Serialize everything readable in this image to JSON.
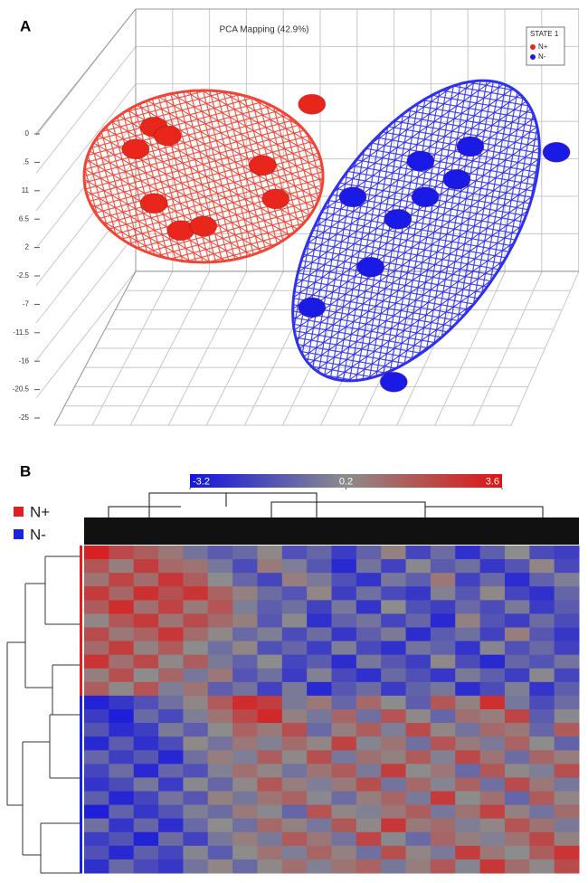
{
  "chart_data": [
    {
      "type": "scatter3d",
      "panel": "A",
      "title": "PCA Mapping (42.9%)",
      "legend_title": "STATE 1",
      "legend": "top-right",
      "ylim": [
        -25,
        20
      ],
      "yticks": [
        {
          "value": 20,
          "label": "0"
        },
        {
          "value": 15.5,
          "label": ".5"
        },
        11,
        6.5,
        2,
        -2.5,
        -7,
        -11.5,
        -16,
        -20.5,
        -25
      ],
      "xlim": [
        0,
        100
      ],
      "series": [
        {
          "name": "N+",
          "color": "#e8261c",
          "x": [
            49.1,
            19.0,
            21.6,
            15.5,
            39.7,
            42.2,
            19.0,
            24.1,
            28.4
          ],
          "y": [
            24.7,
            21.1,
            19.7,
            17.6,
            15.0,
            9.7,
            9.0,
            4.7,
            5.4
          ]
        },
        {
          "name": "N-",
          "color": "#1a1ae6",
          "x": [
            95.7,
            69.8,
            79.3,
            76.7,
            70.7,
            56.9,
            65.5,
            60.3,
            49.1,
            64.7
          ],
          "y": [
            17.1,
            15.7,
            18.0,
            12.8,
            10.0,
            10.0,
            6.5,
            -1.1,
            -7.5,
            -19.3
          ]
        }
      ]
    },
    {
      "type": "heatmap",
      "panel": "B",
      "colorscale": {
        "lim": [
          -3.2,
          3.6
        ],
        "ticks": [
          -3.2,
          0.2,
          3.6
        ],
        "colors": [
          "#1414e0",
          "#8c8c8c",
          "#e01414"
        ]
      },
      "groups": [
        {
          "name": "N+",
          "color": "#e02020"
        },
        {
          "name": "N-",
          "color": "#1a22e0"
        }
      ],
      "rows": [
        {
          "group": 0,
          "values": [
            3.2,
            2.1,
            1.5,
            0.8,
            -0.5,
            -1.2,
            -0.8,
            0.3,
            -1.5,
            -0.9,
            -2.1,
            -1.0,
            0.5,
            -1.8,
            -0.7,
            -2.4,
            -1.1,
            0.2,
            -1.6,
            -2.0
          ]
        },
        {
          "group": 0,
          "values": [
            1.8,
            0.6,
            2.4,
            1.2,
            0.9,
            -0.4,
            -1.6,
            0.7,
            -0.2,
            -1.3,
            -2.6,
            -0.5,
            -1.9,
            0.1,
            -1.2,
            -0.6,
            -2.2,
            -1.4,
            0.4,
            -1.7
          ]
        },
        {
          "group": 0,
          "values": [
            0.9,
            2.2,
            1.1,
            2.6,
            1.5,
            0.2,
            -0.9,
            -1.8,
            0.6,
            -0.3,
            -1.5,
            -2.3,
            -0.4,
            -1.1,
            0.8,
            -1.9,
            -0.8,
            -2.5,
            -1.0,
            -0.2
          ]
        },
        {
          "group": 0,
          "values": [
            2.5,
            1.3,
            2.8,
            1.9,
            2.7,
            1.4,
            0.5,
            -0.7,
            -1.4,
            0.4,
            -2.0,
            -0.6,
            -1.7,
            -2.2,
            -0.1,
            -1.3,
            0.3,
            -1.8,
            -2.4,
            -0.9
          ]
        },
        {
          "group": 0,
          "values": [
            1.6,
            2.9,
            1.0,
            2.3,
            0.7,
            1.8,
            -0.2,
            -1.1,
            -0.6,
            -1.9,
            -0.4,
            -2.3,
            0.2,
            -1.5,
            -2.0,
            -0.8,
            -1.6,
            -0.3,
            -2.1,
            -1.2
          ]
        },
        {
          "group": 0,
          "values": [
            0.4,
            1.7,
            2.5,
            0.9,
            2.0,
            1.2,
            0.6,
            -1.3,
            0.1,
            -2.4,
            -1.0,
            -0.5,
            -1.8,
            -0.9,
            -2.6,
            0.5,
            -1.4,
            -2.0,
            -0.7,
            -1.6
          ]
        },
        {
          "group": 0,
          "values": [
            2.0,
            0.8,
            1.4,
            2.6,
            1.1,
            0.3,
            -0.8,
            -0.2,
            -1.6,
            -0.7,
            -2.2,
            -1.1,
            -0.3,
            -2.5,
            -1.2,
            -0.6,
            -1.9,
            0.6,
            -1.3,
            -2.2
          ]
        },
        {
          "group": 0,
          "values": [
            1.2,
            2.4,
            0.5,
            1.6,
            0.2,
            -0.6,
            0.4,
            -1.5,
            -0.9,
            -2.0,
            -0.2,
            -1.7,
            -2.4,
            -0.5,
            -1.0,
            -2.3,
            0.0,
            -1.5,
            -0.8,
            -1.9
          ]
        },
        {
          "group": 0,
          "values": [
            2.7,
            1.0,
            2.1,
            0.3,
            1.5,
            -0.3,
            -1.0,
            0.2,
            -1.8,
            -1.2,
            -2.5,
            -0.4,
            -1.3,
            -2.0,
            0.3,
            -1.6,
            -2.6,
            -0.9,
            -1.4,
            -0.5
          ]
        },
        {
          "group": 0,
          "values": [
            0.6,
            1.9,
            0.2,
            1.3,
            -0.4,
            0.8,
            -1.4,
            -0.6,
            -2.1,
            -0.1,
            -1.7,
            -2.4,
            -0.8,
            -1.5,
            -2.2,
            -0.3,
            -1.1,
            -2.0,
            0.1,
            -1.8
          ]
        },
        {
          "group": 0,
          "values": [
            1.5,
            0.3,
            1.8,
            -0.2,
            0.9,
            -1.1,
            -0.5,
            -1.9,
            -0.3,
            -2.6,
            -1.3,
            -0.7,
            -2.1,
            -1.0,
            -0.4,
            -2.5,
            -1.6,
            -0.2,
            -2.3,
            -1.1
          ]
        },
        {
          "group": 1,
          "values": [
            -2.8,
            -2.2,
            -1.5,
            -0.6,
            0.4,
            1.6,
            2.9,
            2.4,
            -0.3,
            0.8,
            -0.9,
            1.2,
            0.2,
            -1.1,
            1.7,
            0.5,
            2.8,
            -0.4,
            -1.6,
            -0.7
          ]
        },
        {
          "group": 1,
          "values": [
            -2.1,
            -2.9,
            -0.8,
            -1.7,
            -0.2,
            0.9,
            2.1,
            3.0,
            0.5,
            -0.4,
            1.3,
            -0.6,
            1.8,
            0.3,
            -0.9,
            1.0,
            0.6,
            2.2,
            -1.2,
            0.1
          ]
        },
        {
          "group": 1,
          "values": [
            -1.4,
            -2.5,
            -2.0,
            -0.3,
            -1.1,
            0.2,
            1.4,
            0.7,
            1.9,
            -0.8,
            0.6,
            1.5,
            -0.2,
            2.0,
            0.4,
            -0.5,
            1.2,
            0.8,
            -0.9,
            1.6
          ]
        },
        {
          "group": 1,
          "values": [
            -2.6,
            -1.2,
            -2.4,
            -1.6,
            0.3,
            -0.5,
            0.8,
            -0.1,
            1.1,
            0.4,
            2.3,
            0.0,
            0.9,
            -0.6,
            1.8,
            0.7,
            -0.3,
            1.4,
            0.2,
            -1.0
          ]
        },
        {
          "group": 1,
          "values": [
            -0.9,
            -2.0,
            -1.3,
            -2.7,
            -0.6,
            0.6,
            -0.2,
            1.5,
            0.3,
            1.9,
            -0.4,
            1.0,
            0.5,
            1.6,
            -0.1,
            2.1,
            0.9,
            -0.7,
            1.3,
            0.6
          ]
        },
        {
          "group": 1,
          "values": [
            -1.8,
            -0.7,
            -2.6,
            -0.9,
            -1.5,
            -0.1,
            1.0,
            0.4,
            -0.5,
            0.9,
            1.6,
            -0.3,
            2.4,
            0.2,
            0.8,
            -0.8,
            1.7,
            0.3,
            -0.2,
            1.9
          ]
        },
        {
          "group": 1,
          "values": [
            -2.3,
            -1.6,
            -0.4,
            -2.1,
            0.1,
            -0.9,
            0.3,
            1.7,
            0.6,
            -0.2,
            0.7,
            1.9,
            -0.5,
            1.2,
            0.0,
            1.4,
            -0.6,
            2.0,
            0.8,
            -0.4
          ]
        },
        {
          "group": 1,
          "values": [
            -1.1,
            -2.7,
            -1.8,
            -0.5,
            -1.3,
            0.5,
            -0.4,
            0.9,
            1.4,
            0.1,
            -0.7,
            0.6,
            1.3,
            -0.3,
            2.5,
            0.2,
            1.0,
            -0.9,
            1.6,
            0.4
          ]
        },
        {
          "group": 1,
          "values": [
            -2.9,
            -1.0,
            -2.2,
            -1.4,
            -0.2,
            -0.7,
            0.7,
            0.1,
            -0.9,
            1.8,
            0.4,
            -0.1,
            0.8,
            1.5,
            -0.4,
            0.9,
            2.3,
            0.5,
            -0.5,
            1.1
          ]
        },
        {
          "group": 1,
          "values": [
            -0.6,
            -2.3,
            -0.9,
            -2.5,
            -0.8,
            0.2,
            -0.6,
            1.2,
            0.5,
            -0.4,
            1.7,
            0.3,
            2.6,
            0.7,
            1.1,
            -0.2,
            0.4,
            1.8,
            0.9,
            -0.3
          ]
        },
        {
          "group": 1,
          "values": [
            -2.0,
            -1.4,
            -2.8,
            -0.7,
            -1.9,
            -0.4,
            0.6,
            -0.3,
            1.6,
            0.8,
            -0.5,
            2.2,
            0.1,
            -0.8,
            1.3,
            0.6,
            -0.1,
            0.9,
            2.1,
            0.5
          ]
        },
        {
          "group": 1,
          "values": [
            -1.5,
            -2.6,
            -1.1,
            -1.8,
            0.0,
            -1.2,
            0.2,
            0.9,
            -0.2,
            1.3,
            0.5,
            -0.6,
            1.9,
            0.4,
            -0.3,
            2.4,
            0.8,
            0.2,
            1.5,
            2.7
          ]
        },
        {
          "group": 1,
          "values": [
            -2.4,
            -0.8,
            -1.7,
            -2.2,
            -0.5,
            0.4,
            -0.8,
            0.3,
            1.0,
            -0.1,
            0.9,
            1.4,
            -0.4,
            0.6,
            1.7,
            0.0,
            2.6,
            1.1,
            0.3,
            2.0
          ]
        }
      ]
    }
  ]
}
